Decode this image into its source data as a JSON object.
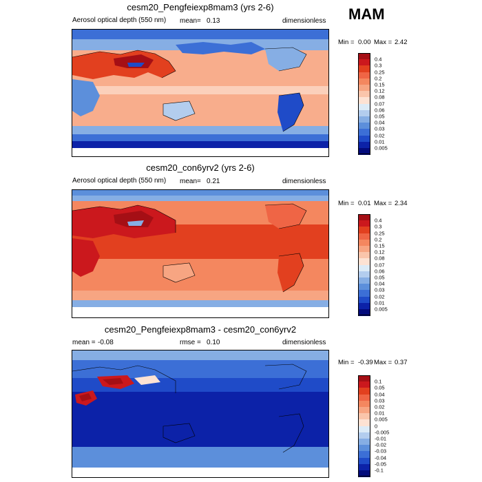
{
  "season": "MAM",
  "chart_data": [
    {
      "type": "heatmap",
      "title": "cesm20_Pengfeiexp8mam3 (yrs 2-6)",
      "left_label": "Aerosol optical depth (550 nm)",
      "mean_label": "mean=",
      "mean_value": "0.13",
      "units": "dimensionless",
      "min_text": "Min =",
      "min_value": "0.00",
      "max_text": "Max =",
      "max_value": "2.42",
      "levels": [
        "0.4",
        "0.3",
        "0.25",
        "0.2",
        "0.15",
        "0.12",
        "0.08",
        "0.07",
        "0.06",
        "0.05",
        "0.04",
        "0.03",
        "0.02",
        "0.01",
        "0.005"
      ],
      "colors": [
        "#a50f15",
        "#cb181d",
        "#e2401f",
        "#ef6545",
        "#f4875f",
        "#f7a582",
        "#fac5ab",
        "#fde2d3",
        "#dcebf7",
        "#b3cdee",
        "#86aee4",
        "#5c8fdb",
        "#3c6fd6",
        "#1f4bc8",
        "#0c22a8",
        "#030b7c"
      ]
    },
    {
      "type": "heatmap",
      "title": "cesm20_con6yrv2 (yrs 2-6)",
      "left_label": "Aerosol optical depth (550 nm)",
      "mean_label": "mean=",
      "mean_value": "0.21",
      "units": "dimensionless",
      "min_text": "Min =",
      "min_value": "0.01",
      "max_text": "Max =",
      "max_value": "2.34",
      "levels": [
        "0.4",
        "0.3",
        "0.25",
        "0.2",
        "0.15",
        "0.12",
        "0.08",
        "0.07",
        "0.06",
        "0.05",
        "0.04",
        "0.03",
        "0.02",
        "0.01",
        "0.005"
      ],
      "colors": [
        "#a50f15",
        "#cb181d",
        "#e2401f",
        "#ef6545",
        "#f4875f",
        "#f7a582",
        "#fac5ab",
        "#fde2d3",
        "#dcebf7",
        "#b3cdee",
        "#86aee4",
        "#5c8fdb",
        "#3c6fd6",
        "#1f4bc8",
        "#0c22a8",
        "#030b7c"
      ]
    },
    {
      "type": "heatmap",
      "title": "cesm20_Pengfeiexp8mam3 - cesm20_con6yrv2",
      "mean_label": "mean =",
      "mean_value": "-0.08",
      "rmse_label": "rmse =",
      "rmse_value": "0.10",
      "units": "dimensionless",
      "min_text": "Min =",
      "min_value": "-0.39",
      "max_text": "Max =",
      "max_value": "0.37",
      "levels": [
        "0.1",
        "0.05",
        "0.04",
        "0.03",
        "0.02",
        "0.01",
        "0.005",
        "0",
        "-0.005",
        "-0.01",
        "-0.02",
        "-0.03",
        "-0.04",
        "-0.05",
        "-0.1"
      ],
      "colors": [
        "#a50f15",
        "#cb181d",
        "#e2401f",
        "#ef6545",
        "#f4875f",
        "#f7a582",
        "#fac5ab",
        "#fde2d3",
        "#dcebf7",
        "#b3cdee",
        "#86aee4",
        "#5c8fdb",
        "#3c6fd6",
        "#1f4bc8",
        "#0c22a8",
        "#030b7c"
      ]
    }
  ]
}
